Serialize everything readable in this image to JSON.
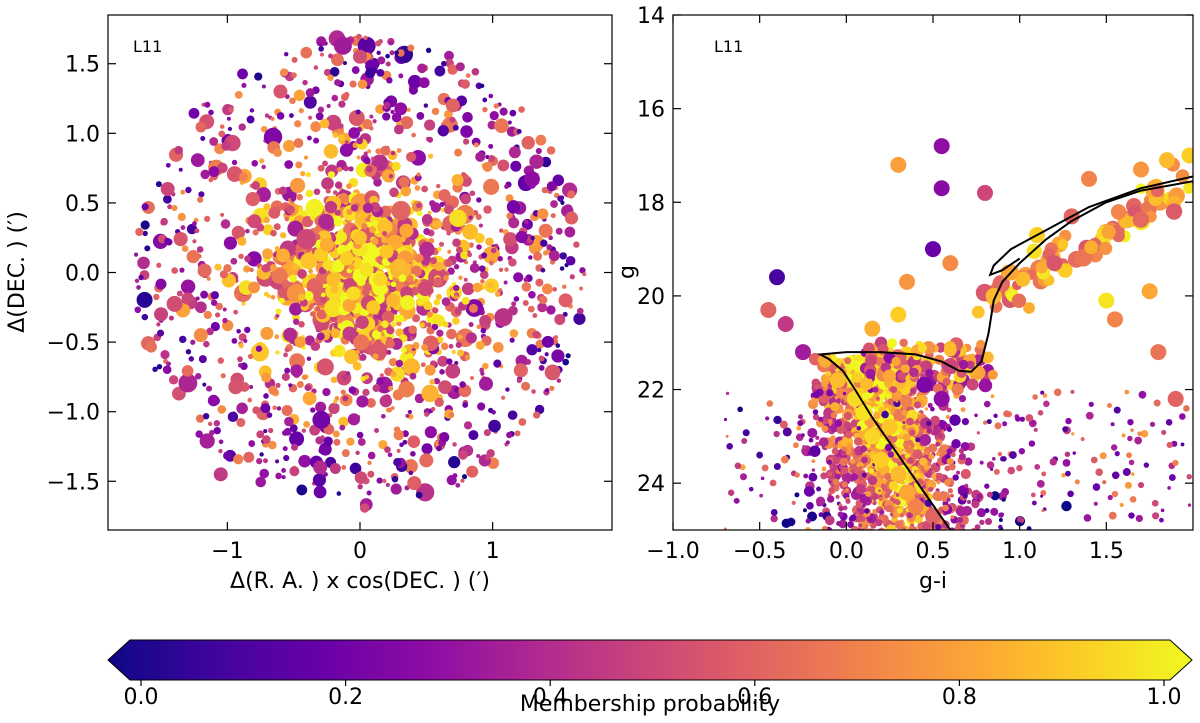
{
  "chart_data": [
    {
      "type": "scatter",
      "panel_label": "L11",
      "xlabel": "Δ(R. A. ) x cos(DEC. ) (′)",
      "ylabel": "Δ(DEC. ) (′)",
      "xlim": [
        -1.9,
        1.9
      ],
      "ylim": [
        -1.85,
        1.85
      ],
      "xticks": [
        -1,
        0,
        1
      ],
      "xticklabels": [
        "−1",
        "0",
        "1"
      ],
      "yticks": [
        -1.5,
        -1.0,
        -0.5,
        0.0,
        0.5,
        1.0,
        1.5
      ],
      "yticklabels": [
        "−1.5",
        "−1.0",
        "−0.5",
        "0.0",
        "0.5",
        "1.0",
        "1.5"
      ],
      "field_radius": 1.7,
      "color_by": "Membership probability",
      "points": [
        [
          0.05,
          0.02,
          0.95
        ],
        [
          0.15,
          -0.05,
          0.92
        ],
        [
          -0.1,
          0.1,
          0.9
        ],
        [
          0.2,
          0.15,
          0.88
        ],
        [
          -0.05,
          -0.15,
          0.93
        ],
        [
          0.3,
          0.05,
          0.85
        ],
        [
          0.0,
          0.25,
          0.87
        ],
        [
          -0.2,
          -0.05,
          0.86
        ],
        [
          0.1,
          -0.25,
          0.89
        ],
        [
          0.25,
          -0.2,
          0.84
        ],
        [
          -0.25,
          0.2,
          0.82
        ],
        [
          0.35,
          0.3,
          0.8
        ],
        [
          -1.2,
          -0.45,
          0.72
        ],
        [
          -1.05,
          -1.45,
          0.45
        ],
        [
          0.95,
          -0.8,
          0.35
        ],
        [
          -0.6,
          1.3,
          0.55
        ],
        [
          1.4,
          0.3,
          0.65
        ],
        [
          -1.45,
          0.6,
          0.5
        ],
        [
          0.7,
          1.2,
          0.6
        ],
        [
          -0.3,
          -1.4,
          0.4
        ],
        [
          0.5,
          -1.35,
          0.62
        ],
        [
          1.55,
          -0.2,
          0.58
        ],
        [
          -1.5,
          -0.3,
          0.48
        ],
        [
          0.0,
          1.55,
          0.52
        ]
      ]
    },
    {
      "type": "scatter",
      "panel_label": "L11",
      "xlabel": "g-i",
      "ylabel": "g",
      "xlim": [
        -1.0,
        2.0
      ],
      "ylim": [
        25.0,
        14.0
      ],
      "xticks": [
        -1.0,
        -0.5,
        0.0,
        0.5,
        1.0,
        1.5
      ],
      "xticklabels": [
        "−1.0",
        "−0.5",
        "0.0",
        "0.5",
        "1.0",
        "1.5"
      ],
      "yticks": [
        14,
        16,
        18,
        20,
        22,
        24
      ],
      "yticklabels": [
        "14",
        "16",
        "18",
        "20",
        "22",
        "24"
      ],
      "color_by": "Membership probability",
      "isochrone": [
        [
          0.6,
          25.0
        ],
        [
          0.45,
          24.2
        ],
        [
          0.3,
          23.4
        ],
        [
          0.15,
          22.6
        ],
        [
          0.05,
          22.0
        ],
        [
          -0.02,
          21.6
        ],
        [
          -0.1,
          21.35
        ],
        [
          -0.15,
          21.25
        ],
        [
          0.0,
          21.2
        ],
        [
          0.2,
          21.2
        ],
        [
          0.4,
          21.25
        ],
        [
          0.55,
          21.4
        ],
        [
          0.65,
          21.6
        ],
        [
          0.72,
          21.62
        ],
        [
          0.78,
          21.4
        ],
        [
          0.82,
          20.8
        ],
        [
          0.85,
          20.1
        ],
        [
          0.9,
          19.7
        ],
        [
          1.0,
          19.3
        ],
        [
          1.15,
          18.8
        ],
        [
          1.3,
          18.4
        ],
        [
          1.5,
          18.0
        ],
        [
          1.7,
          17.75
        ],
        [
          2.0,
          17.55
        ]
      ],
      "hb_branch": [
        [
          2.0,
          17.45
        ],
        [
          1.7,
          17.7
        ],
        [
          1.4,
          18.1
        ],
        [
          1.15,
          18.6
        ],
        [
          0.95,
          19.0
        ],
        [
          0.85,
          19.35
        ],
        [
          0.83,
          19.55
        ],
        [
          0.9,
          19.45
        ],
        [
          1.0,
          19.2
        ]
      ],
      "points": [
        [
          0.1,
          22.5,
          0.95
        ],
        [
          0.15,
          23.0,
          0.92
        ],
        [
          0.2,
          23.5,
          0.9
        ],
        [
          0.05,
          22.2,
          0.93
        ],
        [
          0.25,
          22.8,
          0.88
        ],
        [
          0.3,
          23.8,
          0.85
        ],
        [
          0.35,
          24.2,
          0.8
        ],
        [
          -0.05,
          21.8,
          0.86
        ],
        [
          0.4,
          24.5,
          0.7
        ],
        [
          0.5,
          24.7,
          0.6
        ],
        [
          0.55,
          22.2,
          0.3
        ],
        [
          0.45,
          21.9,
          0.25
        ],
        [
          0.6,
          21.5,
          0.5
        ],
        [
          0.85,
          20.0,
          0.85
        ],
        [
          0.95,
          19.5,
          0.8
        ],
        [
          1.1,
          18.7,
          0.9
        ],
        [
          1.3,
          18.3,
          0.6
        ],
        [
          1.4,
          17.5,
          0.7
        ],
        [
          1.7,
          17.3,
          0.75
        ],
        [
          1.85,
          17.1,
          0.85
        ],
        [
          1.98,
          17.0,
          0.9
        ],
        [
          0.55,
          16.8,
          0.3
        ],
        [
          0.55,
          17.7,
          0.28
        ],
        [
          0.3,
          17.2,
          0.78
        ],
        [
          0.8,
          17.8,
          0.5
        ],
        [
          -0.4,
          19.6,
          0.12
        ],
        [
          0.5,
          19.0,
          0.2
        ],
        [
          1.75,
          19.9,
          0.8
        ],
        [
          1.2,
          19.3,
          0.55
        ],
        [
          1.5,
          20.1,
          0.95
        ],
        [
          1.55,
          20.5,
          0.7
        ],
        [
          1.8,
          21.2,
          0.65
        ],
        [
          1.9,
          22.2,
          0.6
        ],
        [
          -0.45,
          20.3,
          0.6
        ],
        [
          -0.35,
          20.6,
          0.45
        ],
        [
          -0.25,
          21.2,
          0.35
        ],
        [
          0.3,
          20.4,
          0.9
        ],
        [
          0.15,
          20.7,
          0.82
        ],
        [
          0.6,
          19.3,
          0.72
        ],
        [
          0.35,
          19.7,
          0.75
        ]
      ]
    }
  ],
  "colorbar": {
    "label": "Membership probability",
    "ticks": [
      0.0,
      0.2,
      0.4,
      0.6,
      0.8,
      1.0
    ],
    "ticklabels": [
      "0.0",
      "0.2",
      "0.4",
      "0.6",
      "0.8",
      "1.0"
    ],
    "cmap": [
      "#0d0887",
      "#41049d",
      "#6a00a8",
      "#8f0da4",
      "#b12a90",
      "#cc4778",
      "#e16462",
      "#f2844b",
      "#fca636",
      "#fcce25",
      "#f0f921"
    ]
  }
}
